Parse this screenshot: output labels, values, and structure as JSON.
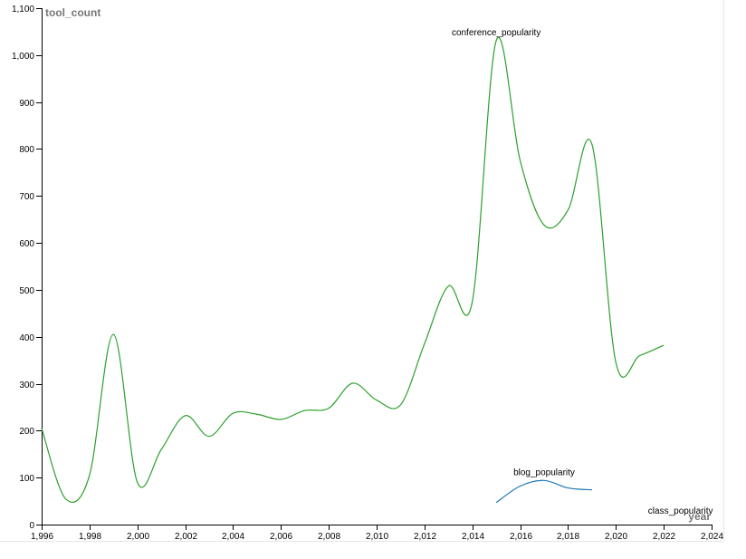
{
  "chart_data": {
    "type": "line",
    "xlabel": "year",
    "ylabel": "tool_count",
    "xlim": [
      1996,
      2024
    ],
    "ylim": [
      0,
      1100
    ],
    "x_ticks": [
      "1,996",
      "1,998",
      "2,000",
      "2,002",
      "2,004",
      "2,006",
      "2,008",
      "2,010",
      "2,012",
      "2,014",
      "2,016",
      "2,018",
      "2,020",
      "2,022",
      "2,024"
    ],
    "y_ticks": [
      "0",
      "100",
      "200",
      "300",
      "400",
      "500",
      "600",
      "700",
      "800",
      "900",
      "1,000",
      "1,100"
    ],
    "grid": false,
    "series": [
      {
        "name": "conference_popularity",
        "color": "#2ca02c",
        "x": [
          1996,
          1997,
          1998,
          1999,
          2000,
          2001,
          2002,
          2003,
          2004,
          2005,
          2006,
          2007,
          2008,
          2009,
          2010,
          2011,
          2012,
          2013,
          2014,
          2015,
          2016,
          2017,
          2018,
          2019,
          2020,
          2021,
          2022
        ],
        "y": [
          205,
          55,
          105,
          405,
          90,
          160,
          232,
          188,
          237,
          235,
          224,
          243,
          248,
          301,
          265,
          255,
          385,
          508,
          475,
          1031,
          775,
          638,
          670,
          810,
          345,
          360,
          382
        ]
      },
      {
        "name": "blog_popularity",
        "color": "#1f77b4",
        "x": [
          2015,
          2016,
          2017,
          2018,
          2019
        ],
        "y": [
          47,
          82,
          94,
          78,
          74
        ]
      },
      {
        "name": "class_popularity",
        "color": "#ff7f0e",
        "x": [],
        "y": []
      }
    ]
  }
}
